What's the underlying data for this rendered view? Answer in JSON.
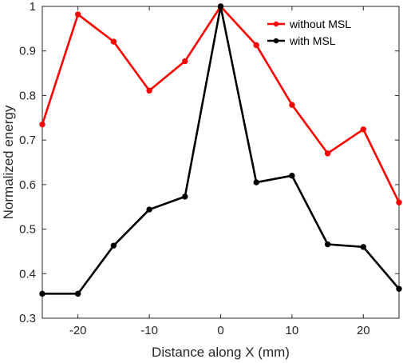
{
  "chart_data": {
    "type": "line",
    "xlabel": "Distance along X (mm)",
    "ylabel": "Normalized energy",
    "xlim": [
      -25,
      25
    ],
    "ylim": [
      0.3,
      1
    ],
    "xticks": [
      -20,
      -10,
      0,
      10,
      20
    ],
    "yticks": [
      0.3,
      0.4,
      0.5,
      0.6,
      0.7,
      0.8,
      0.9,
      1
    ],
    "xtick_labels": [
      "-20",
      "-10",
      "0",
      "10",
      "20"
    ],
    "ytick_labels": [
      "0.3",
      "0.4",
      "0.5",
      "0.6",
      "0.7",
      "0.8",
      "0.9",
      "1"
    ],
    "grid": false,
    "legend_position": "top-right",
    "x": [
      -25,
      -20,
      -15,
      -10,
      -5,
      0,
      5,
      10,
      15,
      20,
      25
    ],
    "series": [
      {
        "name": "without MSL",
        "color": "#ff0000",
        "values": [
          0.735,
          0.982,
          0.921,
          0.811,
          0.877,
          1.0,
          0.913,
          0.779,
          0.67,
          0.724,
          0.56
        ]
      },
      {
        "name": "with MSL",
        "color": "#000000",
        "values": [
          0.355,
          0.355,
          0.463,
          0.544,
          0.573,
          1.0,
          0.605,
          0.62,
          0.466,
          0.46,
          0.366
        ]
      }
    ]
  }
}
